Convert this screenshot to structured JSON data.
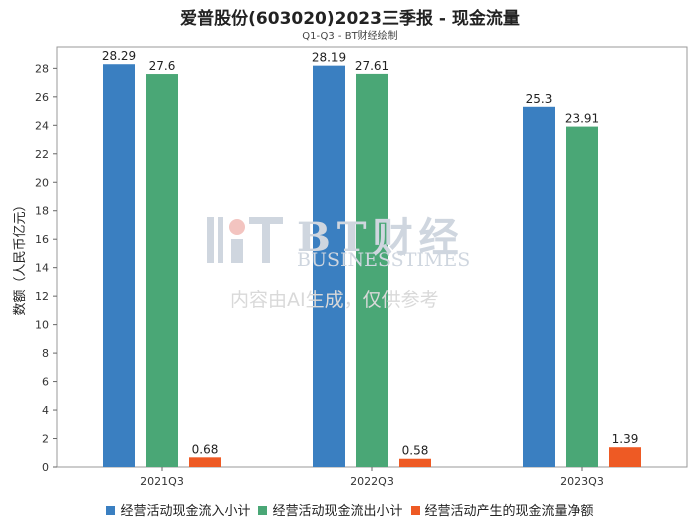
{
  "chart_data": {
    "type": "bar",
    "title": "爱普股份(603020)2023三季报 - 现金流量",
    "subtitle": "Q1-Q3 - BT财经绘制",
    "ylabel": "数额（人民币亿元）",
    "xlabel": "",
    "categories": [
      "2021Q3",
      "2022Q3",
      "2023Q3"
    ],
    "ylim": [
      0,
      29.5
    ],
    "yticks": [
      0,
      2,
      4,
      6,
      8,
      10,
      12,
      14,
      16,
      18,
      20,
      22,
      24,
      26,
      28
    ],
    "grid": false,
    "legend_position": "bottom",
    "series": [
      {
        "name": "经营活动现金流入小计",
        "values": [
          28.29,
          28.19,
          25.3
        ],
        "labels": [
          "28.29",
          "28.19",
          "25.3"
        ],
        "color": "#3a7fc1"
      },
      {
        "name": "经营活动现金流出小计",
        "values": [
          27.6,
          27.61,
          23.91
        ],
        "labels": [
          "27.6",
          "27.61",
          "23.91"
        ],
        "color": "#4aa776"
      },
      {
        "name": "经营活动产生的现金流量净额",
        "values": [
          0.68,
          0.58,
          1.39
        ],
        "labels": [
          "0.68",
          "0.58",
          "1.39"
        ],
        "color": "#ee5a24"
      }
    ]
  },
  "watermark": {
    "brand": "BT财经",
    "brand_en": "BUSINESSTIMES",
    "notice": "内容由AI生成，仅供参考"
  }
}
